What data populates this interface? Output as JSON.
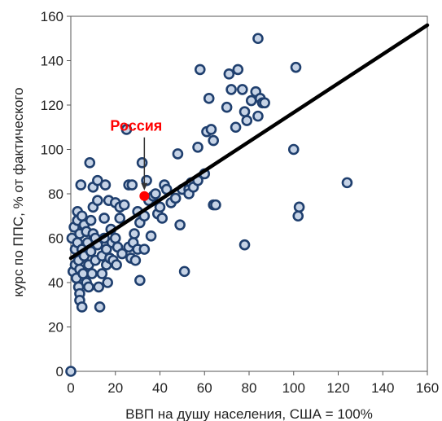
{
  "chart_data": {
    "type": "scatter",
    "xlabel": "ВВП на душу населения, США = 100%",
    "ylabel": "курс по ППС, % от фактического",
    "xlim": [
      0,
      160
    ],
    "ylim": [
      0,
      160
    ],
    "xticks": [
      0,
      20,
      40,
      60,
      80,
      100,
      120,
      140,
      160
    ],
    "yticks": [
      0,
      20,
      40,
      60,
      80,
      100,
      120,
      140,
      160
    ],
    "grid": false,
    "colors": {
      "marker_fill": "#c6d3e6",
      "marker_edge": "#1f3f6e",
      "trend": "#000000",
      "highlight": "#ff0000"
    },
    "trendline": {
      "x": [
        0,
        160
      ],
      "y": [
        51,
        156
      ]
    },
    "highlight": {
      "label": "Россия",
      "x": 33,
      "y": 79
    },
    "points": [
      [
        0,
        0
      ],
      [
        0.5,
        60
      ],
      [
        1,
        45
      ],
      [
        1.5,
        65
      ],
      [
        2,
        55
      ],
      [
        2,
        48
      ],
      [
        2.5,
        42
      ],
      [
        3,
        72
      ],
      [
        3,
        68
      ],
      [
        3,
        58
      ],
      [
        3.5,
        50
      ],
      [
        3.5,
        38
      ],
      [
        4,
        62
      ],
      [
        4,
        46
      ],
      [
        4,
        35
      ],
      [
        4,
        32
      ],
      [
        4.5,
        84
      ],
      [
        5,
        70
      ],
      [
        5,
        55
      ],
      [
        5,
        29
      ],
      [
        5.5,
        44
      ],
      [
        6,
        66
      ],
      [
        6,
        52
      ],
      [
        7,
        63
      ],
      [
        7,
        40
      ],
      [
        7.5,
        58
      ],
      [
        8,
        48
      ],
      [
        8,
        38
      ],
      [
        8.5,
        94
      ],
      [
        9,
        68
      ],
      [
        9,
        54
      ],
      [
        9.5,
        44
      ],
      [
        10,
        83
      ],
      [
        10,
        74
      ],
      [
        10,
        62
      ],
      [
        11,
        60
      ],
      [
        11,
        50
      ],
      [
        12,
        86
      ],
      [
        12,
        77
      ],
      [
        12,
        57
      ],
      [
        12.5,
        38
      ],
      [
        13,
        29
      ],
      [
        14,
        52
      ],
      [
        14,
        44
      ],
      [
        15,
        69
      ],
      [
        15,
        60
      ],
      [
        15.5,
        84
      ],
      [
        16,
        55
      ],
      [
        16,
        48
      ],
      [
        16.5,
        40
      ],
      [
        17,
        77
      ],
      [
        17.5,
        51
      ],
      [
        18,
        64
      ],
      [
        18.5,
        58
      ],
      [
        19,
        50
      ],
      [
        20,
        76
      ],
      [
        20,
        60
      ],
      [
        20.5,
        48
      ],
      [
        21,
        56
      ],
      [
        22,
        74
      ],
      [
        22,
        69
      ],
      [
        23,
        53
      ],
      [
        24,
        75
      ],
      [
        25,
        109
      ],
      [
        26,
        84
      ],
      [
        26,
        56
      ],
      [
        27,
        51
      ],
      [
        27.5,
        84
      ],
      [
        28,
        58
      ],
      [
        28.5,
        62
      ],
      [
        29,
        50
      ],
      [
        30,
        72
      ],
      [
        30,
        55
      ],
      [
        31,
        41
      ],
      [
        31,
        67
      ],
      [
        32,
        94
      ],
      [
        33,
        70
      ],
      [
        33,
        55
      ],
      [
        34,
        86
      ],
      [
        35,
        77
      ],
      [
        36,
        61
      ],
      [
        37,
        79
      ],
      [
        38,
        80
      ],
      [
        39,
        71
      ],
      [
        40,
        74
      ],
      [
        41,
        69
      ],
      [
        42,
        84
      ],
      [
        43,
        82
      ],
      [
        45,
        76
      ],
      [
        47,
        78
      ],
      [
        48,
        98
      ],
      [
        49,
        66
      ],
      [
        50,
        82
      ],
      [
        51,
        45
      ],
      [
        53,
        82
      ],
      [
        53,
        80
      ],
      [
        54,
        85
      ],
      [
        55,
        83
      ],
      [
        57,
        86
      ],
      [
        58,
        136
      ],
      [
        57,
        101
      ],
      [
        60,
        89
      ],
      [
        61,
        108
      ],
      [
        62,
        123
      ],
      [
        63,
        109
      ],
      [
        64,
        104
      ],
      [
        64,
        75
      ],
      [
        65,
        75
      ],
      [
        70,
        119
      ],
      [
        71,
        134
      ],
      [
        72,
        127
      ],
      [
        74,
        110
      ],
      [
        75,
        136
      ],
      [
        77,
        127
      ],
      [
        78,
        117
      ],
      [
        79,
        113
      ],
      [
        78,
        57
      ],
      [
        81,
        122
      ],
      [
        83,
        126
      ],
      [
        84,
        150
      ],
      [
        84,
        115
      ],
      [
        85,
        123
      ],
      [
        86,
        121
      ],
      [
        87,
        121
      ],
      [
        100,
        100
      ],
      [
        101,
        137
      ],
      [
        102,
        70
      ],
      [
        102.5,
        74
      ],
      [
        124,
        85
      ]
    ]
  }
}
